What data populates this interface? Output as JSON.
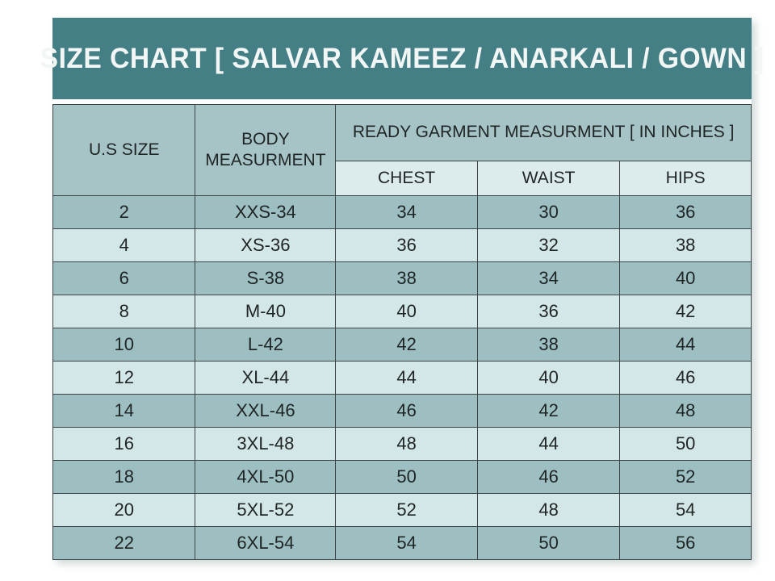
{
  "title": "SIZE CHART [ SALVAR KAMEEZ / ANARKALI / GOWN ]",
  "table": {
    "headers": {
      "us_size": "U.S SIZE",
      "body_measurement": "BODY MEASURMENT",
      "ready_garment_group": "READY GARMENT MEASURMENT [ IN INCHES ]",
      "chest": "CHEST",
      "waist": "WAIST",
      "hips": "HIPS"
    },
    "rows": [
      {
        "us_size": "2",
        "body": "XXS-34",
        "chest": "34",
        "waist": "30",
        "hips": "36"
      },
      {
        "us_size": "4",
        "body": "XS-36",
        "chest": "36",
        "waist": "32",
        "hips": "38"
      },
      {
        "us_size": "6",
        "body": "S-38",
        "chest": "38",
        "waist": "34",
        "hips": "40"
      },
      {
        "us_size": "8",
        "body": "M-40",
        "chest": "40",
        "waist": "36",
        "hips": "42"
      },
      {
        "us_size": "10",
        "body": "L-42",
        "chest": "42",
        "waist": "38",
        "hips": "44"
      },
      {
        "us_size": "12",
        "body": "XL-44",
        "chest": "44",
        "waist": "40",
        "hips": "46"
      },
      {
        "us_size": "14",
        "body": "XXL-46",
        "chest": "46",
        "waist": "42",
        "hips": "48"
      },
      {
        "us_size": "16",
        "body": "3XL-48",
        "chest": "48",
        "waist": "44",
        "hips": "50"
      },
      {
        "us_size": "18",
        "body": "4XL-50",
        "chest": "50",
        "waist": "46",
        "hips": "52"
      },
      {
        "us_size": "20",
        "body": "5XL-52",
        "chest": "52",
        "waist": "48",
        "hips": "54"
      },
      {
        "us_size": "22",
        "body": "6XL-54",
        "chest": "54",
        "waist": "50",
        "hips": "56"
      }
    ]
  },
  "colors": {
    "title_bg": "#457f86",
    "title_text": "#f2f7f6",
    "header_bg": "#a6c3c6",
    "subheader_bg": "#dcebec",
    "row_dark": "#9dbfc2",
    "row_light": "#d4e7e8",
    "border": "#3c4446",
    "text": "#1f2424"
  },
  "chart_data": {
    "type": "table",
    "title": "SIZE CHART [ SALVAR KAMEEZ / ANARKALI / GOWN ]",
    "column_group": {
      "label": "READY GARMENT MEASURMENT [ IN INCHES ]",
      "spans": [
        "CHEST",
        "WAIST",
        "HIPS"
      ]
    },
    "columns": [
      "U.S SIZE",
      "BODY MEASURMENT",
      "CHEST",
      "WAIST",
      "HIPS"
    ],
    "rows": [
      [
        "2",
        "XXS-34",
        34,
        30,
        36
      ],
      [
        "4",
        "XS-36",
        36,
        32,
        38
      ],
      [
        "6",
        "S-38",
        38,
        34,
        40
      ],
      [
        "8",
        "M-40",
        40,
        36,
        42
      ],
      [
        "10",
        "L-42",
        42,
        38,
        44
      ],
      [
        "12",
        "XL-44",
        44,
        40,
        46
      ],
      [
        "14",
        "XXL-46",
        46,
        42,
        48
      ],
      [
        "16",
        "3XL-48",
        48,
        44,
        50
      ],
      [
        "18",
        "4XL-50",
        50,
        46,
        52
      ],
      [
        "20",
        "5XL-52",
        52,
        48,
        54
      ],
      [
        "22",
        "6XL-54",
        54,
        50,
        56
      ]
    ]
  }
}
